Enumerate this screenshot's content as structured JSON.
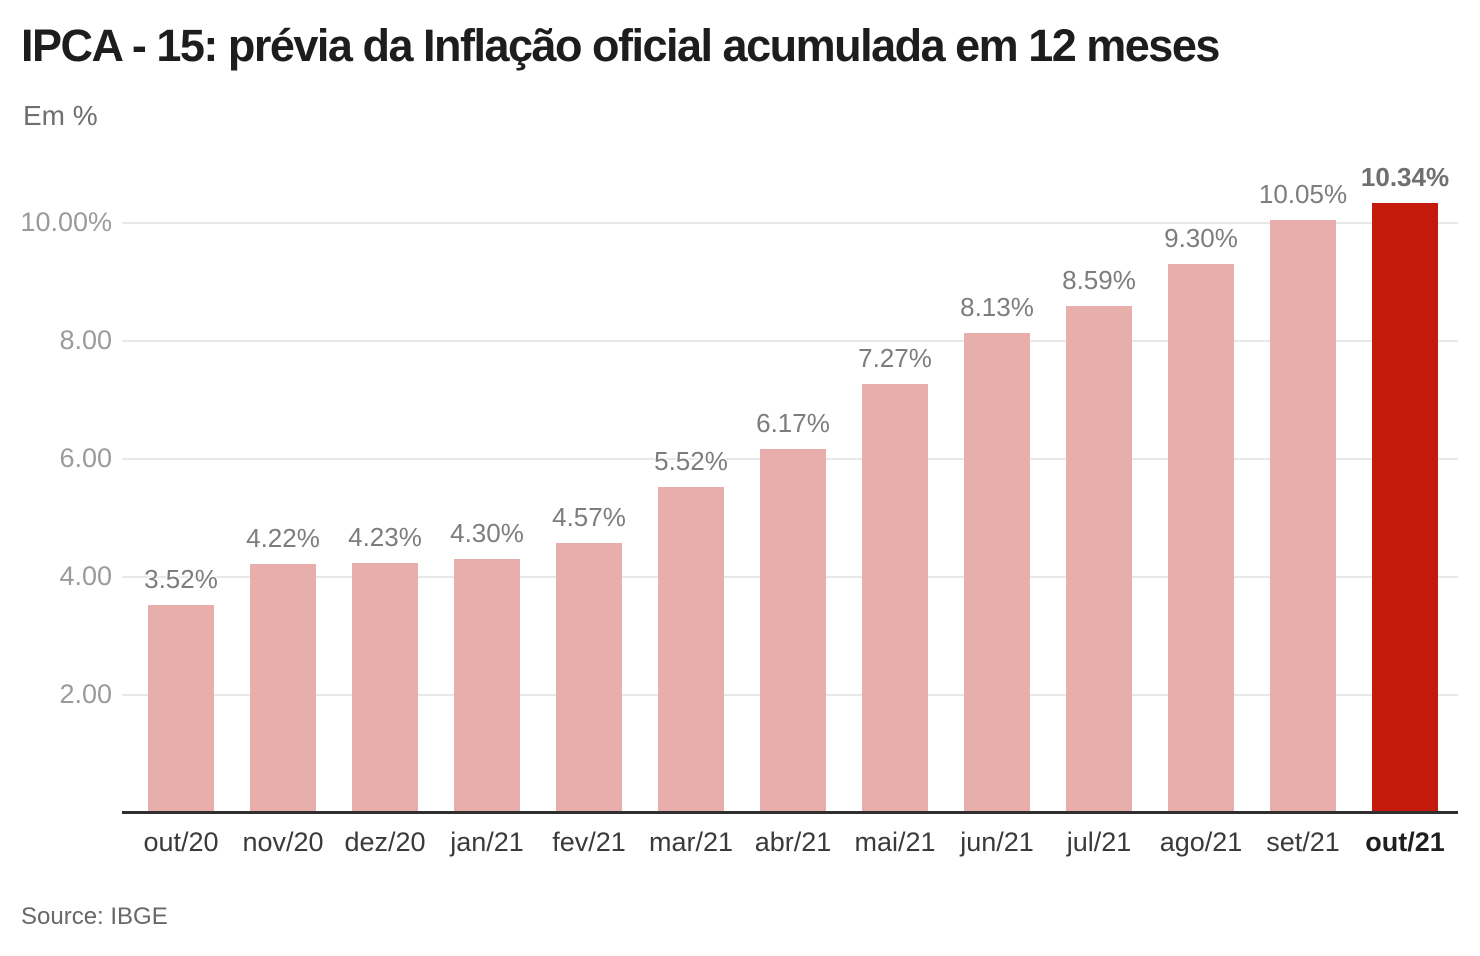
{
  "header": {
    "title": "IPCA - 15: prévia da Inflação oficial acumulada em 12 meses",
    "subtitle": "Em %"
  },
  "footer": {
    "source": "Source: IBGE"
  },
  "colors": {
    "bar": "#e8aeab",
    "bar_highlight": "#c41a0c",
    "grid": "#e8e8e8",
    "axis": "#2f2f2f",
    "value_label": "#7c7d80",
    "value_label_highlight": "#6e6f71",
    "y_tick_label": "#9b9b9e",
    "x_label": "#3a3a3a",
    "x_label_highlight": "#1f1f1f",
    "title": "#1d1d1f",
    "subtitle": "#6f6f72",
    "source": "#68686b"
  },
  "chart_data": {
    "type": "bar",
    "title": "IPCA - 15: prévia da Inflação oficial acumulada em 12 meses",
    "ylabel": "Em %",
    "xlabel": "",
    "categories": [
      "out/20",
      "nov/20",
      "dez/20",
      "jan/21",
      "fev/21",
      "mar/21",
      "abr/21",
      "mai/21",
      "jun/21",
      "jul/21",
      "ago/21",
      "set/21",
      "out/21"
    ],
    "values": [
      3.52,
      4.22,
      4.23,
      4.3,
      4.57,
      5.52,
      6.17,
      7.27,
      8.13,
      8.59,
      9.3,
      10.05,
      10.34
    ],
    "labels": [
      "3.52%",
      "4.22%",
      "4.23%",
      "4.30%",
      "4.57%",
      "5.52%",
      "6.17%",
      "7.27%",
      "8.13%",
      "8.59%",
      "9.30%",
      "10.05%",
      "10.34%"
    ],
    "highlight_index": 12,
    "y_ticks": [
      {
        "value": 2,
        "label": "2.00"
      },
      {
        "value": 4,
        "label": "4.00"
      },
      {
        "value": 6,
        "label": "6.00"
      },
      {
        "value": 8,
        "label": "8.00"
      },
      {
        "value": 10,
        "label": "10.00%"
      }
    ],
    "ylim": [
      0,
      11
    ],
    "grid": true,
    "legend": "none",
    "source": "Source: IBGE"
  }
}
